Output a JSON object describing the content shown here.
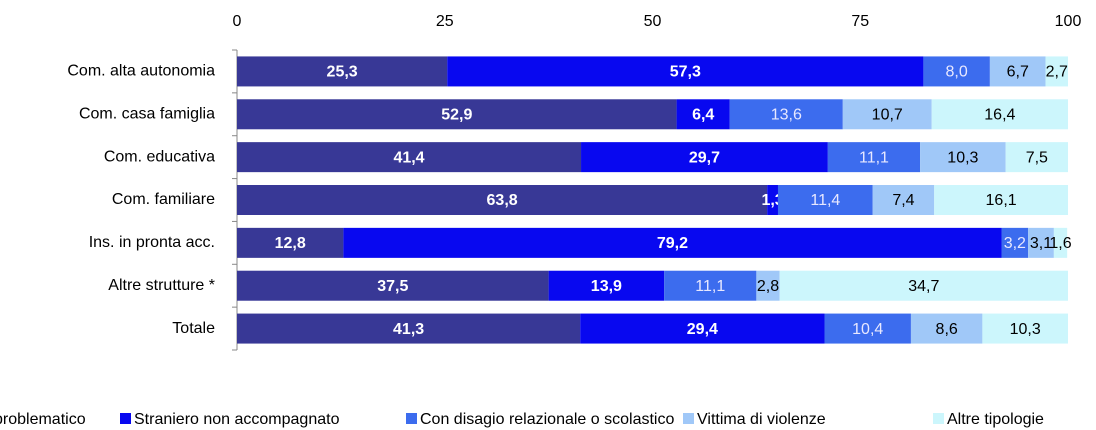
{
  "chart_data": {
    "type": "stacked-bar-horizontal",
    "categories": [
      "Com. alta autonomia",
      "Com. casa famiglia",
      "Com. educativa",
      "Com. familiare",
      "Ins. in pronta acc.",
      "Altre strutture *",
      "Totale"
    ],
    "xlim": [
      0,
      100
    ],
    "xticks": [
      0,
      25,
      50,
      75,
      100
    ],
    "series": [
      {
        "name": "problematico",
        "color": "#383896",
        "values": [
          25.3,
          52.9,
          41.4,
          63.8,
          12.8,
          37.5,
          41.3
        ],
        "value_labels": [
          "25,3",
          "52,9",
          "41,4",
          "63,8",
          "12,8",
          "37,5",
          "41,3"
        ]
      },
      {
        "name": "Straniero non accompagnato",
        "color": "#0808f0",
        "values": [
          57.3,
          6.4,
          29.7,
          1.3,
          79.2,
          13.9,
          29.4
        ],
        "value_labels": [
          "57,3",
          "6,4",
          "29,7",
          "1,3",
          "79,2",
          "13,9",
          "29,4"
        ]
      },
      {
        "name": "Con disagio relazionale o scolastico",
        "color": "#3c6cee",
        "values": [
          8.0,
          13.6,
          11.1,
          11.4,
          3.2,
          11.1,
          10.4
        ],
        "value_labels": [
          "8,0",
          "13,6",
          "11,1",
          "11,4",
          "3,2",
          "11,1",
          "10,4"
        ]
      },
      {
        "name": "Vittima di violenze",
        "color": "#a0c8f8",
        "values": [
          6.7,
          10.7,
          10.3,
          7.4,
          3.1,
          2.8,
          8.6
        ],
        "value_labels": [
          "6,7",
          "10,7",
          "10,3",
          "7,4",
          "3,1",
          "2,8",
          "8,6"
        ]
      },
      {
        "name": "Altre tipologie",
        "color": "#ccf6fc",
        "values": [
          2.7,
          16.4,
          7.5,
          16.1,
          1.6,
          34.7,
          10.3
        ],
        "value_labels": [
          "2,7",
          "16,4",
          "7,5",
          "16,1",
          "1,6",
          "34,7",
          "10,3"
        ]
      }
    ]
  }
}
